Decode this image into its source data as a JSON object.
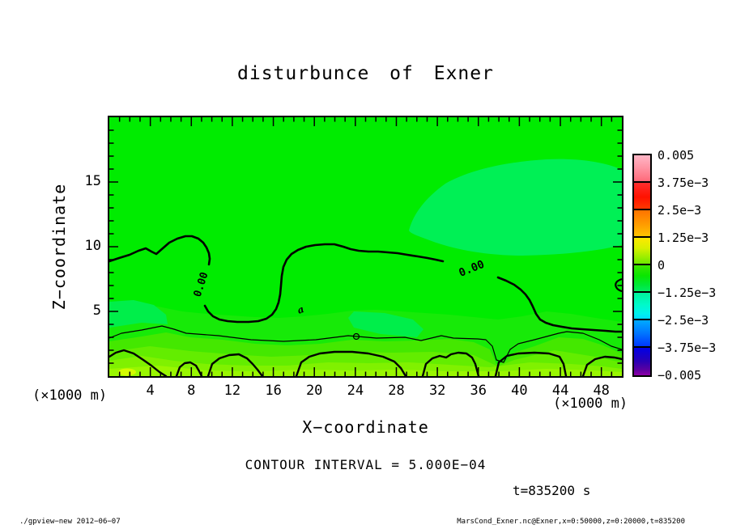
{
  "title": "disturbunce of Exner",
  "axes": {
    "x": {
      "label": "X−coordinate",
      "unit": "(×1000 m)",
      "min": 0,
      "max": 50,
      "major_every": 4,
      "minor_every": 1,
      "ticks": [
        "4",
        "8",
        "12",
        "16",
        "20",
        "24",
        "28",
        "32",
        "36",
        "40",
        "44",
        "48"
      ],
      "tick_values": [
        4,
        8,
        12,
        16,
        20,
        24,
        28,
        32,
        36,
        40,
        44,
        48
      ]
    },
    "y": {
      "label": "Z−coordinate",
      "unit": "(×1000 m)",
      "min": 0,
      "max": 20,
      "major_every": 5,
      "minor_every": 1,
      "ticks": [
        "5",
        "10",
        "15"
      ],
      "tick_values": [
        5,
        10,
        15
      ]
    }
  },
  "colorbar": {
    "labels": [
      "0.005",
      "3.75e−3",
      "2.5e−3",
      "1.25e−3",
      "0",
      "−1.25e−3",
      "−2.5e−3",
      "−3.75e−3",
      "−0.005"
    ],
    "top_color": "#ff9aaa",
    "bottom_color": "#8e00a8",
    "zero_color": "#00ec00"
  },
  "annotations": {
    "contour_interval": "CONTOUR INTERVAL = 5.000E−04",
    "time_label": "t=835200 s",
    "zero_contour_label": "0.00",
    "marker_label": "a"
  },
  "footer": {
    "left": "./gpview−new  2012−06−07",
    "right": "MarsCond_Exner.nc@Exner,x=0:50000,z=0:20000,t=835200"
  },
  "colors": {
    "field_green": "#00ec00",
    "mint_patch": "#00f055",
    "band_greens": [
      "#17ea08",
      "#44e800",
      "#63ed00",
      "#80f100",
      "#99f700"
    ],
    "yellow_spot": "#d4fb00",
    "contour_line": "#000000"
  },
  "chart_data": {
    "type": "heatmap",
    "title": "disturbunce of Exner",
    "xlabel": "X-coordinate (×1000 m)",
    "ylabel": "Z-coordinate (×1000 m)",
    "xlim": [
      0,
      50
    ],
    "ylim": [
      0,
      20
    ],
    "value_range": [
      -0.005,
      0.005
    ],
    "contour_interval": 0.0005,
    "colorbar_ticks": [
      0.005,
      0.00375,
      0.0025,
      0.00125,
      0,
      -0.00125,
      -0.0025,
      -0.00375,
      -0.005
    ],
    "zero_contour": {
      "x": [
        0,
        2,
        3.5,
        4.5,
        5,
        7,
        8,
        9,
        9.3,
        9.2,
        10,
        12,
        14,
        16,
        16.8,
        18,
        20,
        24,
        28,
        31,
        34,
        36,
        38,
        40,
        42,
        46,
        50
      ],
      "z": [
        9.0,
        9.4,
        9.9,
        9.6,
        9.5,
        10.7,
        10.8,
        10.2,
        8.5,
        5.5,
        4.7,
        4.3,
        4.2,
        4.6,
        8.5,
        9.7,
        10.2,
        10.0,
        9.8,
        9.5,
        8.7,
        7.6,
        6.1,
        4.8,
        4.2,
        3.8,
        3.5
      ]
    },
    "field_summary": "Near-zero Exner disturbance (uniform green) over most of the domain; a weak negative (mint) patch aloft between x≈29-50, z≈10-18; values turn increasingly positive (yellow-green bands) below z≈4 with surface maxima forming bumpy thick contours along the bottom boundary; thick line = 0.00 contour, thin line = +5e-4 contour.",
    "grid": false,
    "legend_position": "right-colorbar"
  }
}
